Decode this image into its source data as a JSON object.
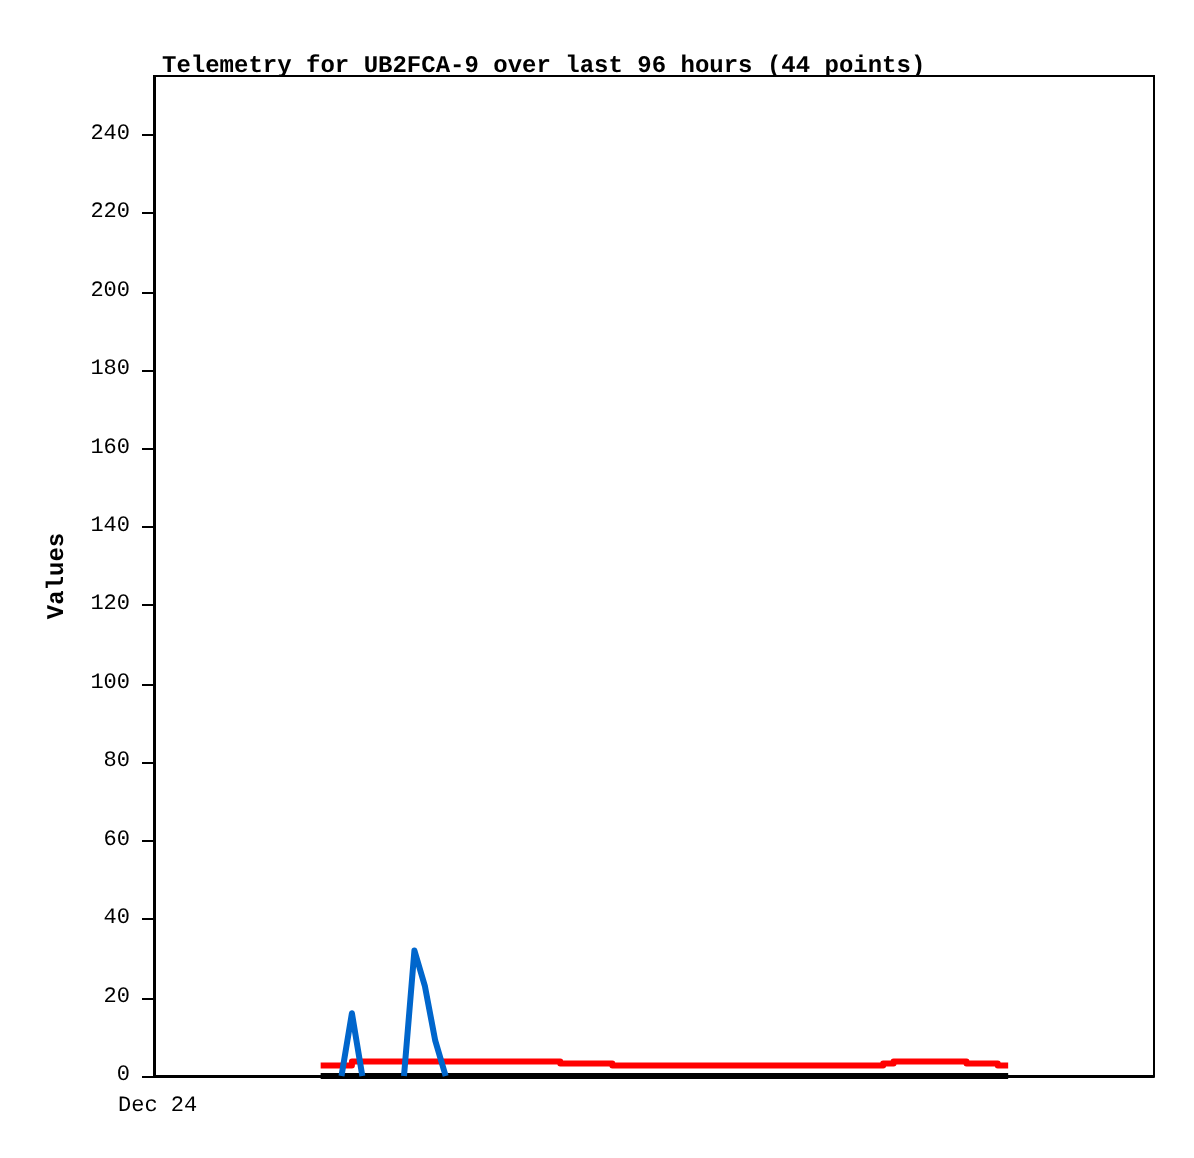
{
  "chart_data": {
    "type": "line",
    "title": "Telemetry for UB2FCA-9 over last 96 hours (44 points)",
    "ylabel": "Values",
    "annotations": [
      "Dec 24"
    ],
    "categories": [
      null,
      null,
      null,
      null,
      null,
      null,
      null,
      null,
      null,
      null,
      null,
      null,
      null,
      null,
      null,
      null,
      null,
      null,
      null,
      null,
      null,
      null,
      null,
      null,
      null,
      null,
      null,
      null,
      null,
      null,
      null,
      null,
      null,
      null,
      null,
      null,
      null,
      null,
      null,
      null,
      null,
      null,
      null,
      null,
      null,
      null,
      null,
      null,
      null,
      null,
      null,
      null,
      null,
      null,
      null,
      null,
      null,
      null,
      null,
      null,
      null,
      null,
      null,
      null,
      null,
      null,
      null
    ],
    "ylim": [
      0,
      255
    ],
    "yticks": [
      0,
      20,
      40,
      60,
      80,
      100,
      120,
      140,
      160,
      180,
      200,
      220,
      240
    ],
    "grid": false,
    "marker": "none",
    "line_style": "solid",
    "series": [
      {
        "color": "#000000",
        "values": [
          0,
          0,
          0,
          0,
          0,
          0,
          0,
          0,
          0,
          0,
          0,
          0,
          0,
          0,
          0,
          0,
          0,
          0,
          0,
          0,
          0,
          0,
          0,
          0,
          0,
          0,
          0,
          0,
          0,
          0,
          0,
          0,
          0,
          0,
          0,
          0,
          0,
          0,
          0,
          0,
          0,
          0,
          0,
          0,
          0,
          0,
          0,
          0,
          0,
          0,
          0,
          0,
          0,
          0,
          0,
          0,
          0,
          0,
          0,
          0,
          0,
          0,
          0,
          0,
          0,
          0,
          0
        ]
      },
      {
        "type": "step",
        "color": "#ff0000",
        "values": [
          2.7,
          2.7,
          2.7,
          3.7,
          3.7,
          3.7,
          3.7,
          3.7,
          3.7,
          3.7,
          3.7,
          3.7,
          3.7,
          3.7,
          3.7,
          3.7,
          3.7,
          3.7,
          3.7,
          3.7,
          3.7,
          3.7,
          3.7,
          3.2,
          3.2,
          3.2,
          3.2,
          3.2,
          2.7,
          2.7,
          2.7,
          2.7,
          2.7,
          2.7,
          2.7,
          2.7,
          2.7,
          2.7,
          2.7,
          2.7,
          2.7,
          2.7,
          2.7,
          2.7,
          2.7,
          2.7,
          2.7,
          2.7,
          2.7,
          2.7,
          2.7,
          2.7,
          2.7,
          2.7,
          3.2,
          3.7,
          3.7,
          3.7,
          3.7,
          3.7,
          3.7,
          3.7,
          3.2,
          3.2,
          3.2,
          2.7,
          2.7
        ]
      },
      {
        "color": "#0066cc",
        "values": [
          null,
          null,
          0,
          16,
          0,
          null,
          null,
          null,
          0,
          32,
          23,
          9,
          0,
          null,
          null,
          null,
          null,
          null,
          null,
          null,
          null,
          null,
          null,
          null,
          null,
          null,
          null,
          null,
          null,
          null,
          null,
          null,
          null,
          null,
          null,
          null,
          null,
          null,
          null,
          null,
          null,
          null,
          null,
          null,
          null,
          null,
          null,
          null,
          null,
          null,
          null,
          null,
          null,
          null,
          null,
          null,
          null,
          null,
          null,
          null,
          null,
          null,
          null,
          null,
          null,
          null,
          null
        ]
      }
    ]
  }
}
